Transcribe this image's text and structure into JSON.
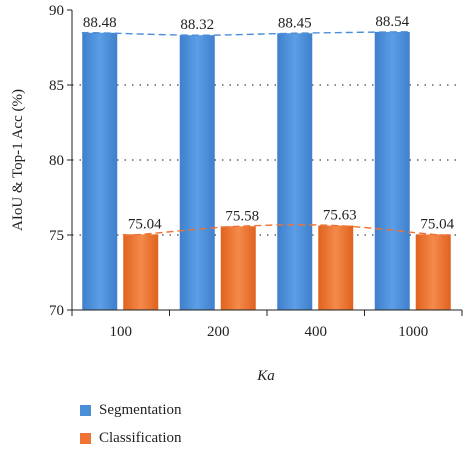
{
  "chart_data": {
    "type": "bar",
    "categories": [
      "100",
      "200",
      "400",
      "1000"
    ],
    "xlabel": "Ka",
    "ylabel": "AIoU & Top-1 Acc (%)",
    "ylim": [
      70,
      90
    ],
    "yticks": [
      70,
      75,
      80,
      85,
      90
    ],
    "grid": "horizontal-dotted",
    "legend_position": "bottom",
    "series": [
      {
        "name": "Segmentation",
        "values": [
          88.48,
          88.32,
          88.45,
          88.54
        ],
        "color": "#4a8ed8",
        "labels": [
          "88.48",
          "88.32",
          "88.45",
          "88.54"
        ]
      },
      {
        "name": "Classification",
        "values": [
          75.04,
          75.58,
          75.63,
          75.04
        ],
        "color": "#ed7432",
        "labels": [
          "75.04",
          "75.58",
          "75.63",
          "75.04"
        ]
      }
    ],
    "trendlines": [
      {
        "series": "Segmentation",
        "style": "dashed",
        "color": "#4a8ed8"
      },
      {
        "series": "Classification",
        "style": "dashed",
        "color": "#ed7432"
      }
    ]
  },
  "legend": {
    "items": [
      {
        "label": "Segmentation",
        "color": "#4a8ed8"
      },
      {
        "label": "Classification",
        "color": "#ed7432"
      }
    ]
  }
}
